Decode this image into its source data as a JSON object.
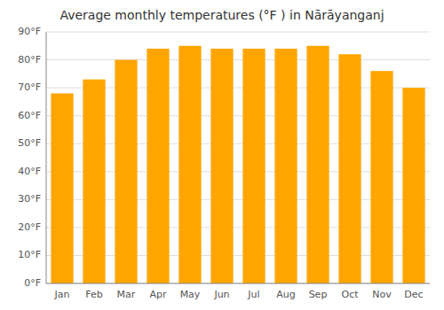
{
  "chart_data": {
    "type": "bar",
    "title": "Average monthly temperatures (°F ) in Nārāyanganj",
    "categories": [
      "Jan",
      "Feb",
      "Mar",
      "Apr",
      "May",
      "Jun",
      "Jul",
      "Aug",
      "Sep",
      "Oct",
      "Nov",
      "Dec"
    ],
    "values": [
      68,
      73,
      80,
      84,
      85,
      84,
      84,
      84,
      85,
      82,
      76,
      70
    ],
    "color": "#FFA500",
    "ylim": [
      0,
      90
    ],
    "yticks": [
      {
        "value": 0,
        "label": "0°F"
      },
      {
        "value": 10,
        "label": "10°F"
      },
      {
        "value": 20,
        "label": "20°F"
      },
      {
        "value": 30,
        "label": "30°F"
      },
      {
        "value": 40,
        "label": "40°F"
      },
      {
        "value": 50,
        "label": "50°F"
      },
      {
        "value": 60,
        "label": "60°F"
      },
      {
        "value": 70,
        "label": "70°F"
      },
      {
        "value": 80,
        "label": "80°F"
      },
      {
        "value": 90,
        "label": "90°F"
      }
    ],
    "grid": true
  }
}
